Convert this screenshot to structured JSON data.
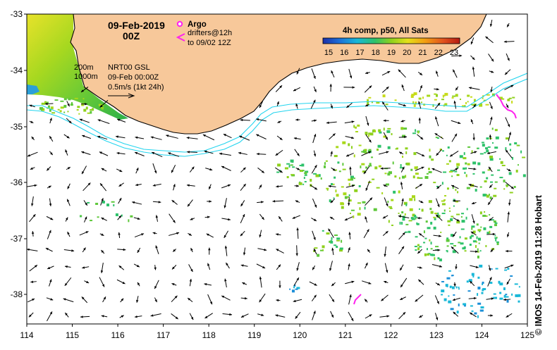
{
  "map": {
    "date": "09-Feb-2019",
    "hour": "00Z",
    "legend": {
      "argo_label": "Argo",
      "drifter_label": "drifters@12h",
      "drifter_sub": "to 09/02 12Z"
    },
    "info": {
      "contour_200": "200m",
      "contour_1000": "1000m",
      "product": "NRT00 GSL",
      "analysis": "09-Feb 00:00Z",
      "scale": "0.5m/s (1kt 24h)"
    },
    "colorbar": {
      "title": "4h comp, p50, All Sats",
      "ticks": [
        "15",
        "16",
        "17",
        "18",
        "19",
        "20",
        "21",
        "22",
        "23"
      ],
      "colors": [
        "#1c2fa8",
        "#1d6fd8",
        "#19b8d8",
        "#2ec26a",
        "#8fd11d",
        "#e5e01a",
        "#f39c12",
        "#e1531f",
        "#b51a12"
      ]
    },
    "lat_ticks": [
      "-33",
      "-34",
      "-35",
      "-36",
      "-37",
      "-38"
    ],
    "lon_ticks": [
      "114",
      "115",
      "116",
      "117",
      "118",
      "119",
      "120",
      "121",
      "122",
      "123",
      "124",
      "125"
    ],
    "credit": "©  IMOS 14-Feb-2019 11:28 Hobart",
    "colors": {
      "land": "#f7c89a",
      "isobath": "#22d4ee",
      "argo": "#ff22ee",
      "drifter": "#ff22ee"
    }
  }
}
